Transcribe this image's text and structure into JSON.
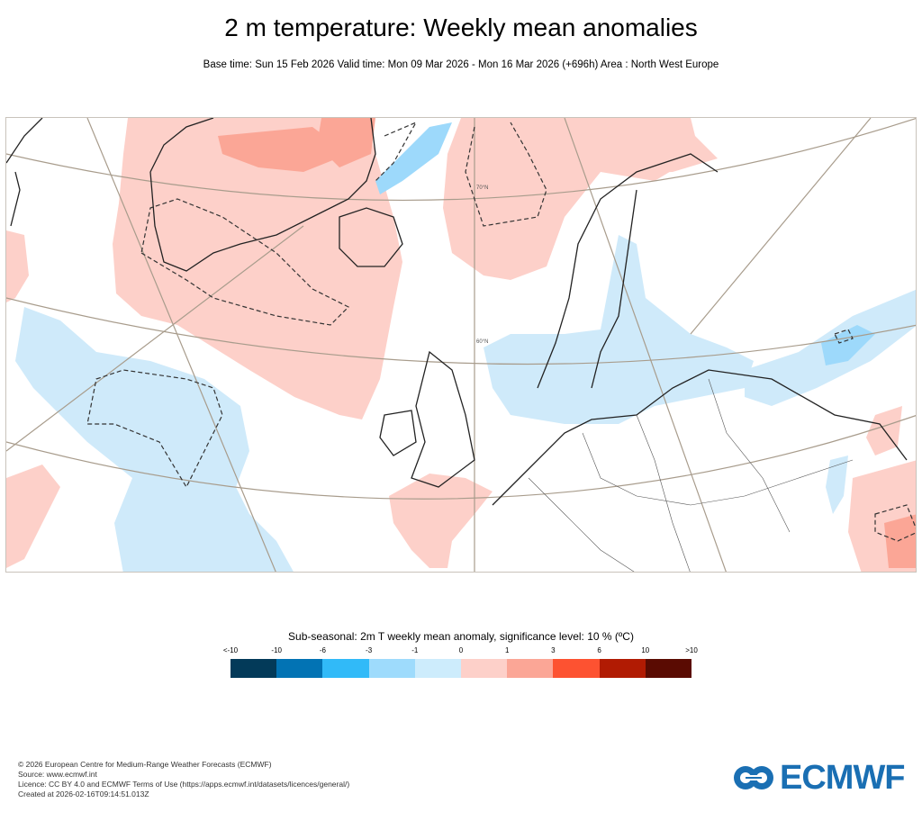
{
  "header": {
    "title": "2 m temperature: Weekly mean anomalies",
    "subtitle": "Base time: Sun 15 Feb 2026 Valid time: Mon 09 Mar 2026 - Mon 16 Mar 2026 (+696h) Area : North West Europe"
  },
  "map": {
    "area": "North West Europe",
    "latitude_labels": [
      "70°N",
      "60°N"
    ],
    "significance_contour": "dashed",
    "colors": {
      "land_outline": "#222222",
      "graticule": "#a89c8c",
      "warm_light": "#fdd0c9",
      "warm_mid": "#fba696",
      "cold_light": "#cfeafa",
      "cold_mid": "#9dd9fb"
    }
  },
  "legend": {
    "title": "Sub-seasonal: 2m T weekly mean anomaly, significance level: 10 % (ºC)",
    "ticks": [
      "<-10",
      "-10",
      "-6",
      "-3",
      "-1",
      "0",
      "1",
      "3",
      "6",
      "10",
      ">10"
    ],
    "colors": [
      "#033a59",
      "#0273b4",
      "#31baf8",
      "#9edbfc",
      "#cdecfc",
      "#fdd0c9",
      "#fba696",
      "#fd5231",
      "#b11b03",
      "#5a0b02"
    ]
  },
  "footer": {
    "lines": [
      "© 2026 European Centre for Medium-Range Weather Forecasts (ECMWF)",
      "Source: www.ecmwf.int",
      "Licence: CC BY 4.0 and ECMWF Terms of Use (https://apps.ecmwf.int/datasets/licences/general/)",
      "Created at 2026-02-16T09:14:51.013Z"
    ]
  },
  "logo": {
    "text": "ECMWF",
    "color": "#1a6fb3"
  }
}
